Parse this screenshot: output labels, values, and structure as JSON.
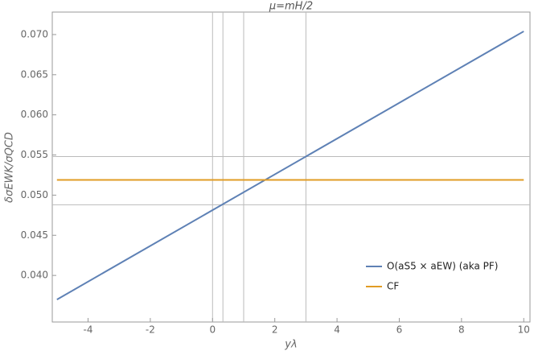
{
  "chart_data": {
    "type": "line",
    "title": "μ=mH/2",
    "x_label": "yλ",
    "y_label": "δσEWK/σQCD",
    "x": [
      -5,
      10
    ],
    "series": [
      {
        "name": "O(aS5 × aEW) (aka PF)",
        "color": "#5e81b5",
        "values": [
          0.037,
          0.0704
        ]
      },
      {
        "name": "CF",
        "color": "#e19c24",
        "values": [
          0.0519,
          0.0519
        ]
      }
    ],
    "xlim": [
      -5.15,
      10.2
    ],
    "ylim": [
      0.0342,
      0.0728
    ],
    "xticks": [
      -4,
      -2,
      0,
      2,
      4,
      6,
      8,
      10
    ],
    "yticks": [
      {
        "value": 0.04,
        "label": "0.040"
      },
      0.045,
      {
        "value": 0.05,
        "label": "0.050"
      },
      0.055,
      {
        "value": 0.06,
        "label": "0.060"
      },
      0.065,
      {
        "value": 0.07,
        "label": "0.070"
      }
    ],
    "x_gridlines": [
      0,
      0.3333,
      1,
      3
    ],
    "y_gridlines": [
      0.0488,
      0.0548
    ],
    "legend": "bottom-right"
  }
}
